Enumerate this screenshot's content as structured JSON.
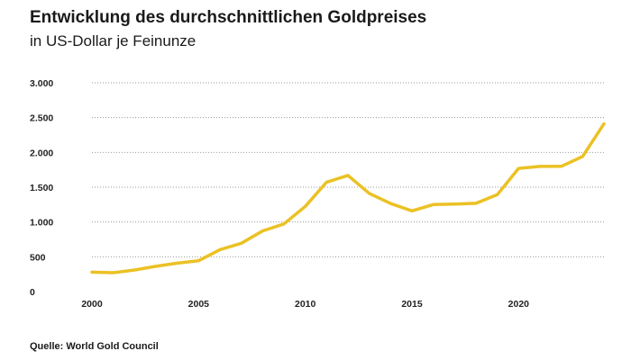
{
  "header": {
    "title": "Entwicklung des durchschnittlichen Goldpreises",
    "subtitle": "in US-Dollar je Feinunze"
  },
  "footer": {
    "source": "Quelle: World Gold Council"
  },
  "colors": {
    "line": "#EBC124",
    "grid": "#9a9a9a",
    "text": "#1a1a1a"
  },
  "chart_data": {
    "type": "line",
    "title": "Entwicklung des durchschnittlichen Goldpreises",
    "subtitle": "in US-Dollar je Feinunze",
    "xlabel": "",
    "ylabel": "",
    "xlim": [
      2000,
      2024
    ],
    "ylim": [
      0,
      3000
    ],
    "x_ticks": [
      2000,
      2005,
      2010,
      2015,
      2020
    ],
    "x_tick_labels": [
      "2000",
      "2005",
      "2010",
      "2015",
      "2020"
    ],
    "y_ticks": [
      0,
      500,
      1000,
      1500,
      2000,
      2500,
      3000
    ],
    "y_tick_labels": [
      "0",
      "500",
      "1.000",
      "1.500",
      "2.000",
      "2.500",
      "3.000"
    ],
    "grid": "horizontal dotted",
    "legend": "none",
    "series": [
      {
        "x": [
          2000,
          2001,
          2002,
          2003,
          2004,
          2005,
          2006,
          2007,
          2008,
          2009,
          2010,
          2011,
          2012,
          2013,
          2014,
          2015,
          2016,
          2017,
          2018,
          2019,
          2020,
          2021,
          2022,
          2023,
          2024
        ],
        "values": [
          279,
          271,
          310,
          363,
          409,
          444,
          603,
          695,
          872,
          972,
          1225,
          1572,
          1669,
          1411,
          1266,
          1160,
          1251,
          1257,
          1268,
          1393,
          1770,
          1799,
          1800,
          1941,
          2410
        ]
      }
    ]
  }
}
